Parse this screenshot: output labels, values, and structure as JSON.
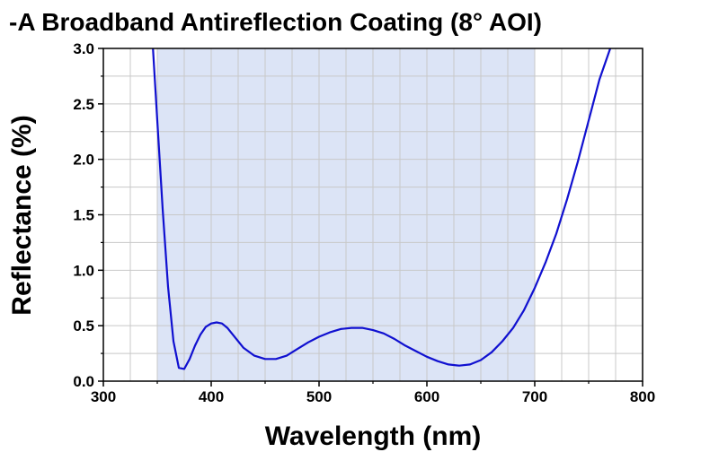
{
  "chart_data": {
    "type": "line",
    "title": "-A Broadband Antireflection Coating (8° AOI)",
    "xlabel": "Wavelength (nm)",
    "ylabel": "Reflectance (%)",
    "xlim": [
      300,
      800
    ],
    "ylim": [
      0,
      3.0
    ],
    "x_ticks": [
      300,
      400,
      500,
      600,
      700,
      800
    ],
    "x_tick_labels": [
      "300",
      "400",
      "500",
      "600",
      "700",
      "800"
    ],
    "y_ticks": [
      0,
      0.5,
      1.0,
      1.5,
      2.0,
      2.5,
      3.0
    ],
    "y_tick_labels": [
      "0.0",
      "0.5",
      "1.0",
      "1.5",
      "2.0",
      "2.5",
      "3.0"
    ],
    "grid": true,
    "shaded_band": {
      "x_start": 350,
      "x_end": 700,
      "color": "#dce4f6"
    },
    "series": [
      {
        "color": "#1010d0",
        "x": [
          346,
          350,
          355,
          360,
          365,
          370,
          375,
          380,
          385,
          390,
          395,
          400,
          405,
          410,
          415,
          420,
          430,
          440,
          450,
          460,
          470,
          480,
          490,
          500,
          510,
          520,
          530,
          540,
          550,
          560,
          570,
          580,
          590,
          600,
          610,
          620,
          630,
          640,
          650,
          660,
          670,
          680,
          690,
          700,
          710,
          720,
          730,
          740,
          750,
          760,
          770
        ],
        "y": [
          3.0,
          2.35,
          1.55,
          0.85,
          0.36,
          0.12,
          0.11,
          0.2,
          0.32,
          0.42,
          0.49,
          0.52,
          0.53,
          0.52,
          0.48,
          0.42,
          0.3,
          0.23,
          0.2,
          0.2,
          0.23,
          0.29,
          0.35,
          0.4,
          0.44,
          0.47,
          0.48,
          0.48,
          0.46,
          0.43,
          0.38,
          0.32,
          0.27,
          0.22,
          0.18,
          0.15,
          0.14,
          0.15,
          0.19,
          0.26,
          0.36,
          0.48,
          0.64,
          0.84,
          1.07,
          1.33,
          1.64,
          1.98,
          2.35,
          2.72,
          3.0
        ]
      }
    ]
  }
}
